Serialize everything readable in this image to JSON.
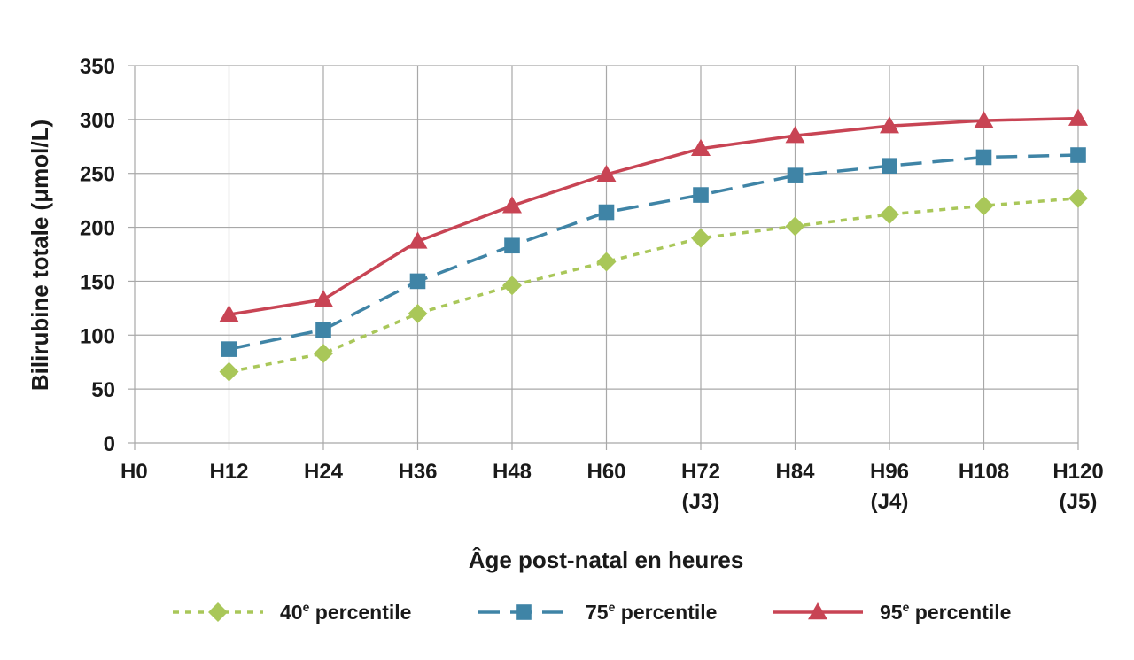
{
  "chart_data": {
    "type": "line",
    "xlabel": "Âge post-natal en heures",
    "ylabel": "Bilirubine totale (μmol/L)",
    "ylim": [
      0,
      350
    ],
    "y_ticks": [
      0,
      50,
      100,
      150,
      200,
      250,
      300,
      350
    ],
    "grid": true,
    "legend_position": "bottom",
    "x_ticks": [
      {
        "lines": [
          "H0"
        ]
      },
      {
        "lines": [
          "H12"
        ]
      },
      {
        "lines": [
          "H24"
        ]
      },
      {
        "lines": [
          "H36"
        ]
      },
      {
        "lines": [
          "H48"
        ]
      },
      {
        "lines": [
          "H60"
        ]
      },
      {
        "lines": [
          "H72",
          "(J3)"
        ]
      },
      {
        "lines": [
          "H84"
        ]
      },
      {
        "lines": [
          "H96",
          "(J4)"
        ]
      },
      {
        "lines": [
          "H108"
        ]
      },
      {
        "lines": [
          "H120",
          "(J5)"
        ]
      }
    ],
    "x": [
      12,
      24,
      36,
      48,
      60,
      72,
      84,
      96,
      108,
      120
    ],
    "series": [
      {
        "name_num": "40",
        "name_sup": "e",
        "name_rest": " percentile",
        "color": "#a9c759",
        "marker": "diamond",
        "line_style": "dotted",
        "values": [
          66,
          83,
          120,
          146,
          168,
          190,
          201,
          212,
          220,
          227
        ]
      },
      {
        "name_num": "75",
        "name_sup": "e",
        "name_rest": " percentile",
        "color": "#3f84a6",
        "marker": "square",
        "line_style": "dashed",
        "values": [
          87,
          105,
          150,
          183,
          214,
          230,
          248,
          257,
          265,
          267
        ]
      },
      {
        "name_num": "95",
        "name_sup": "e",
        "name_rest": " percentile",
        "color": "#c84454",
        "marker": "triangle",
        "line_style": "solid",
        "values": [
          119,
          133,
          187,
          220,
          249,
          273,
          285,
          294,
          299,
          301
        ]
      }
    ]
  }
}
